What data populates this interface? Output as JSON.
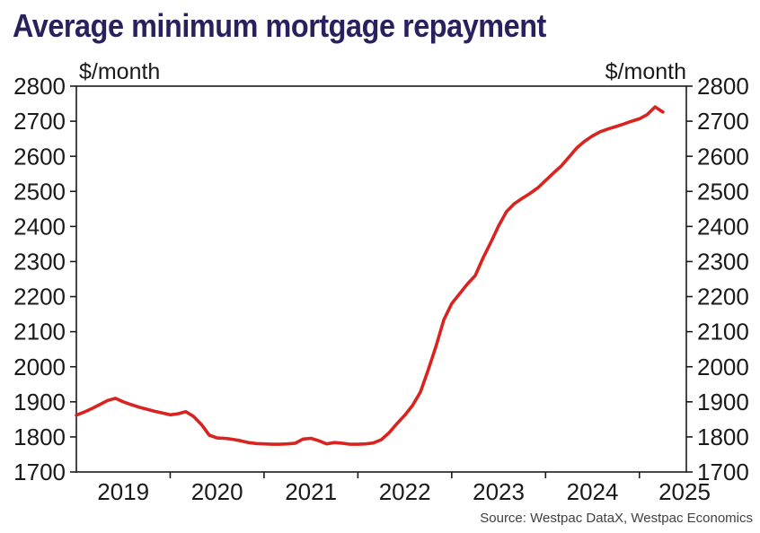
{
  "title": "Average minimum mortgage repayment",
  "units": {
    "left": "$/month",
    "right": "$/month"
  },
  "source": "Source: Westpac DataX, Westpac Economics",
  "colors": {
    "background": "#ffffff",
    "title": "#29215e",
    "line": "#d9231f",
    "axis": "#1a1a1a",
    "source_text": "#414042"
  },
  "chart_data": {
    "type": "line",
    "title": "Average minimum mortgage repayment",
    "ylabel_left": "$/month",
    "ylabel_right": "$/month",
    "source": "Source: Westpac DataX, Westpac Economics",
    "grid": "off",
    "legend": "none",
    "ylim": [
      1700,
      2800
    ],
    "ytick_step": 100,
    "xlim_years": [
      2019,
      2025.5
    ],
    "x_axis_year_labels": [
      2019,
      2020,
      2021,
      2022,
      2023,
      2024,
      2025
    ],
    "x_start": "2019-01",
    "frequency": "monthly",
    "series": [
      {
        "name": "Average minimum mortgage repayment ($/month)",
        "color": "#d9231f",
        "values": [
          1862,
          1871,
          1881,
          1892,
          1904,
          1910,
          1900,
          1892,
          1885,
          1879,
          1873,
          1868,
          1863,
          1866,
          1872,
          1858,
          1835,
          1805,
          1797,
          1796,
          1793,
          1789,
          1784,
          1781,
          1780,
          1779,
          1779,
          1780,
          1782,
          1794,
          1796,
          1789,
          1780,
          1784,
          1782,
          1779,
          1779,
          1780,
          1783,
          1792,
          1812,
          1838,
          1862,
          1890,
          1928,
          1991,
          2059,
          2134,
          2180,
          2208,
          2236,
          2260,
          2310,
          2355,
          2402,
          2442,
          2465,
          2480,
          2494,
          2510,
          2531,
          2552,
          2572,
          2598,
          2624,
          2643,
          2658,
          2670,
          2678,
          2685,
          2692,
          2700,
          2707,
          2719,
          2741,
          2726
        ]
      }
    ]
  }
}
